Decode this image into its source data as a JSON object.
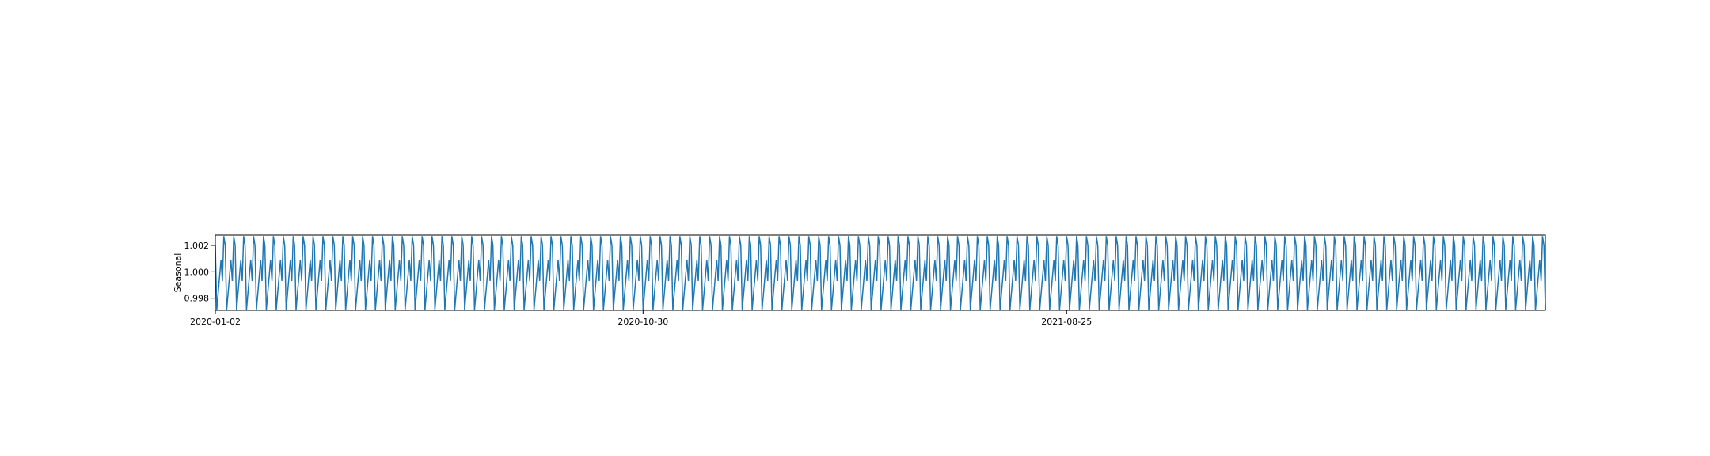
{
  "chart_data": {
    "type": "line",
    "title": "",
    "xlabel": "",
    "ylabel": "Seasonal",
    "x_tick_labels": [
      "2020-01-02",
      "2020-10-30",
      "2021-08-25"
    ],
    "x_tick_dates": [
      "2020-01-02",
      "2020-10-30",
      "2021-08-25"
    ],
    "y_ticks": [
      0.998,
      1.0,
      1.002
    ],
    "y_tick_labels": [
      "0.998",
      "1.000",
      "1.002"
    ],
    "xlim": [
      "2020-01-02",
      "2022-07-29"
    ],
    "ylim": [
      0.99708,
      1.00278
    ],
    "grid": false,
    "legend": "none",
    "period": 5,
    "seasonal_cycle": [
      1.002,
      0.9971,
      1.0009,
      0.9993,
      1.0027
    ],
    "observation_count": 300,
    "series": [
      {
        "color": "#1f77b4",
        "description": "Repeating weekly seasonal pattern of five values (1.00200, 0.99710, 1.00090, 0.99930, 1.00270) over business-day observations from 2020-01-02 to 2022-07-29"
      }
    ]
  }
}
